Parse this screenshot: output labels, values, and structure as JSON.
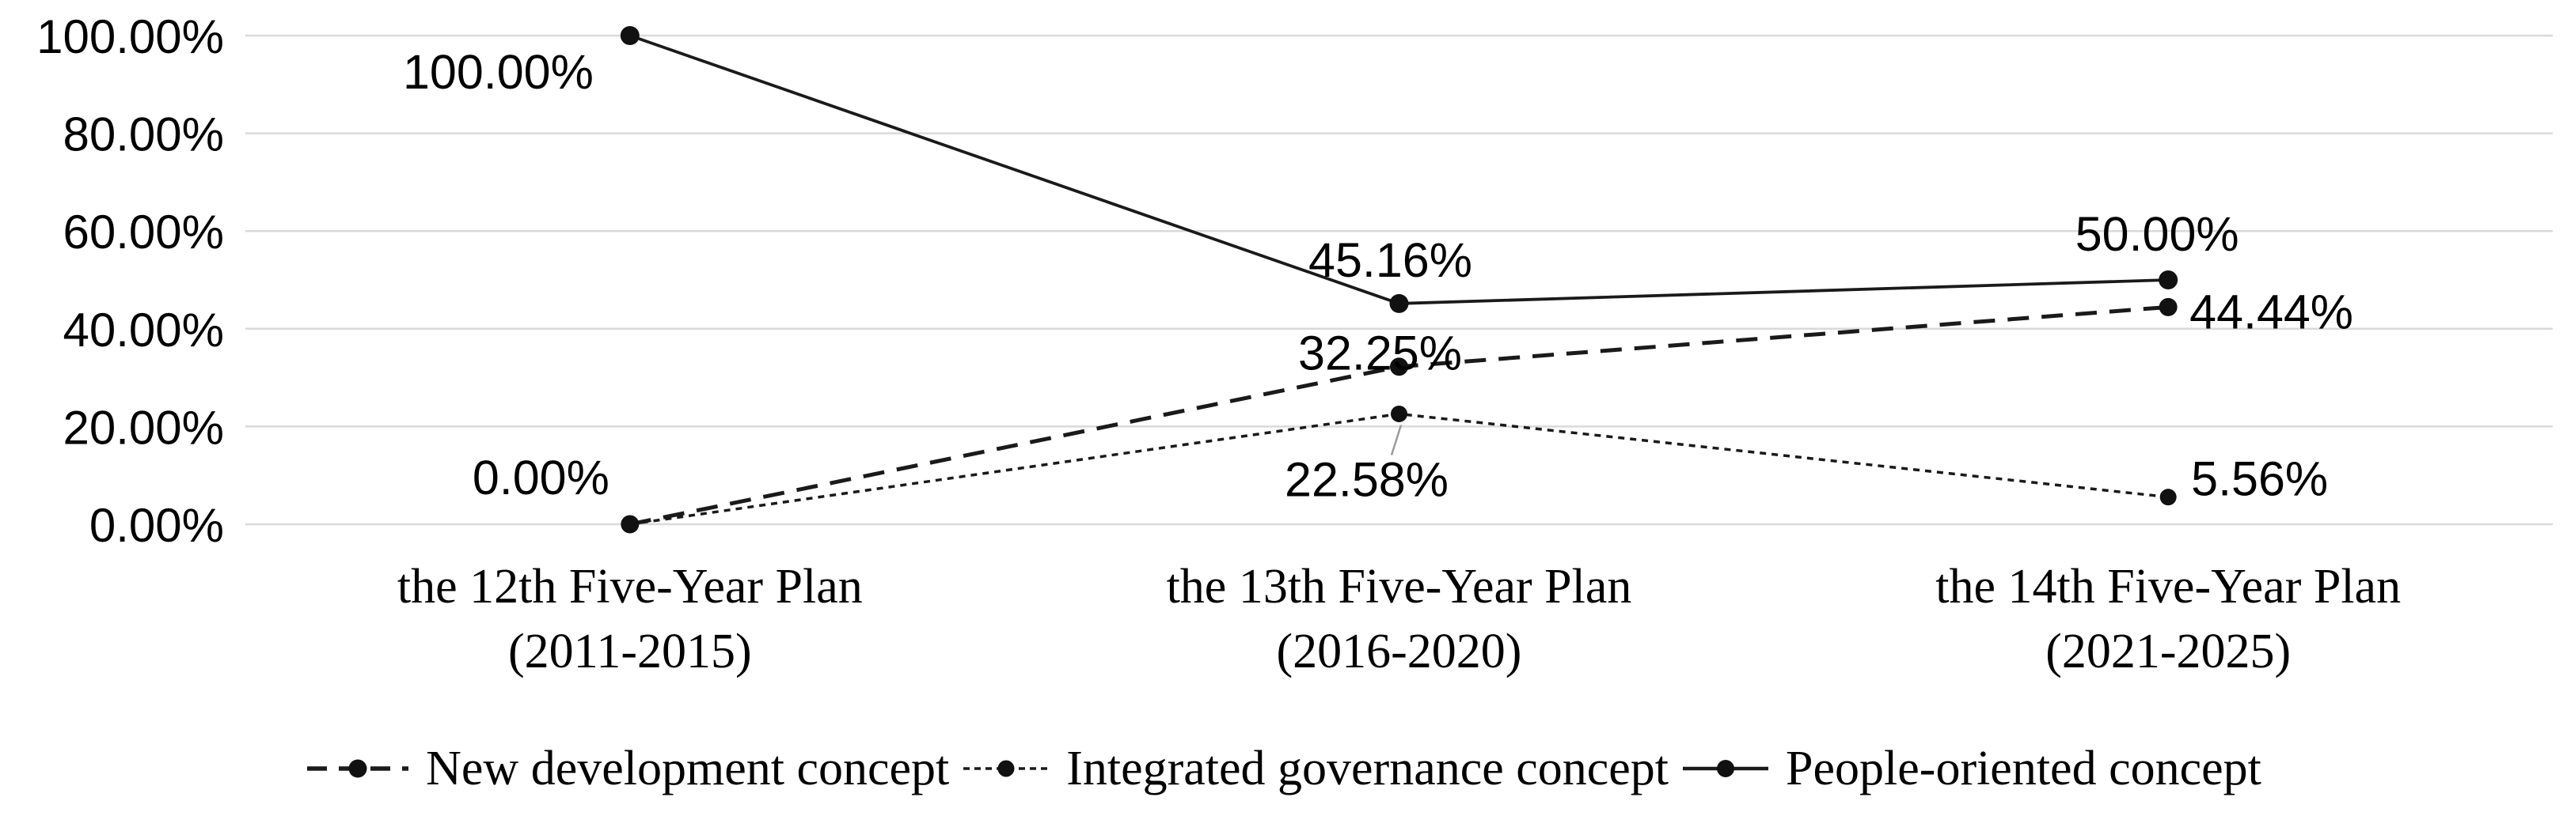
{
  "chart_data": {
    "type": "line",
    "title": "",
    "xlabel": "",
    "ylabel": "",
    "ylim": [
      0,
      100
    ],
    "grid": true,
    "legend_position": "bottom",
    "background_color": "#ffffff",
    "categories": [
      {
        "line1": "the 12th Five-Year Plan",
        "line2": "(2011-2015)"
      },
      {
        "line1": "the 13th Five-Year Plan",
        "line2": "(2016-2020)"
      },
      {
        "line1": "the 14th Five-Year Plan",
        "line2": "(2021-2025)"
      }
    ],
    "yticks": [
      {
        "value": 0,
        "label": "0.00%"
      },
      {
        "value": 20,
        "label": "20.00%"
      },
      {
        "value": 40,
        "label": "40.00%"
      },
      {
        "value": 60,
        "label": "60.00%"
      },
      {
        "value": 80,
        "label": "80.00%"
      },
      {
        "value": 100,
        "label": "100.00%"
      }
    ],
    "series": [
      {
        "name": "New development concept",
        "line_style": "dashed",
        "values": [
          0,
          32.25,
          44.44
        ],
        "point_labels": [
          {
            "text": "",
            "anchor": "middle",
            "dx": 0,
            "dy": 0
          },
          {
            "text": "32.25%",
            "anchor": "middle",
            "dx": -24,
            "dy": 4
          },
          {
            "text": "44.44%",
            "anchor": "start",
            "dx": 27,
            "dy": 27
          }
        ]
      },
      {
        "name": "Integrated governance concept",
        "line_style": "dotted",
        "values": [
          0,
          22.58,
          5.56
        ],
        "point_labels": [
          {
            "text": "0.00%",
            "anchor": "end",
            "dx": -26,
            "dy": -38
          },
          {
            "text": "22.58%",
            "anchor": "middle",
            "dx": -41,
            "dy": 104
          },
          {
            "text": "5.56%",
            "anchor": "start",
            "dx": 29,
            "dy": -2
          }
        ]
      },
      {
        "name": "People-oriented concept",
        "line_style": "solid",
        "values": [
          100,
          45.16,
          50
        ],
        "point_labels": [
          {
            "text": "100.00%",
            "anchor": "end",
            "dx": -46,
            "dy": 67
          },
          {
            "text": "45.16%",
            "anchor": "middle",
            "dx": -11,
            "dy": -34
          },
          {
            "text": "50.00%",
            "anchor": "middle",
            "dx": -14,
            "dy": -37
          }
        ]
      }
    ],
    "leader_line": {
      "series": 1,
      "point": 1,
      "from_dx": 2.5,
      "from_dy": 14,
      "to_dx": -9.5,
      "to_dy": 52
    },
    "colors": {
      "line": "#1a1a1a",
      "marker": "#111111",
      "gridline": "#d9d9d9",
      "text": "#000000",
      "leader": "#9b9b9b",
      "background": "#ffffff"
    }
  }
}
